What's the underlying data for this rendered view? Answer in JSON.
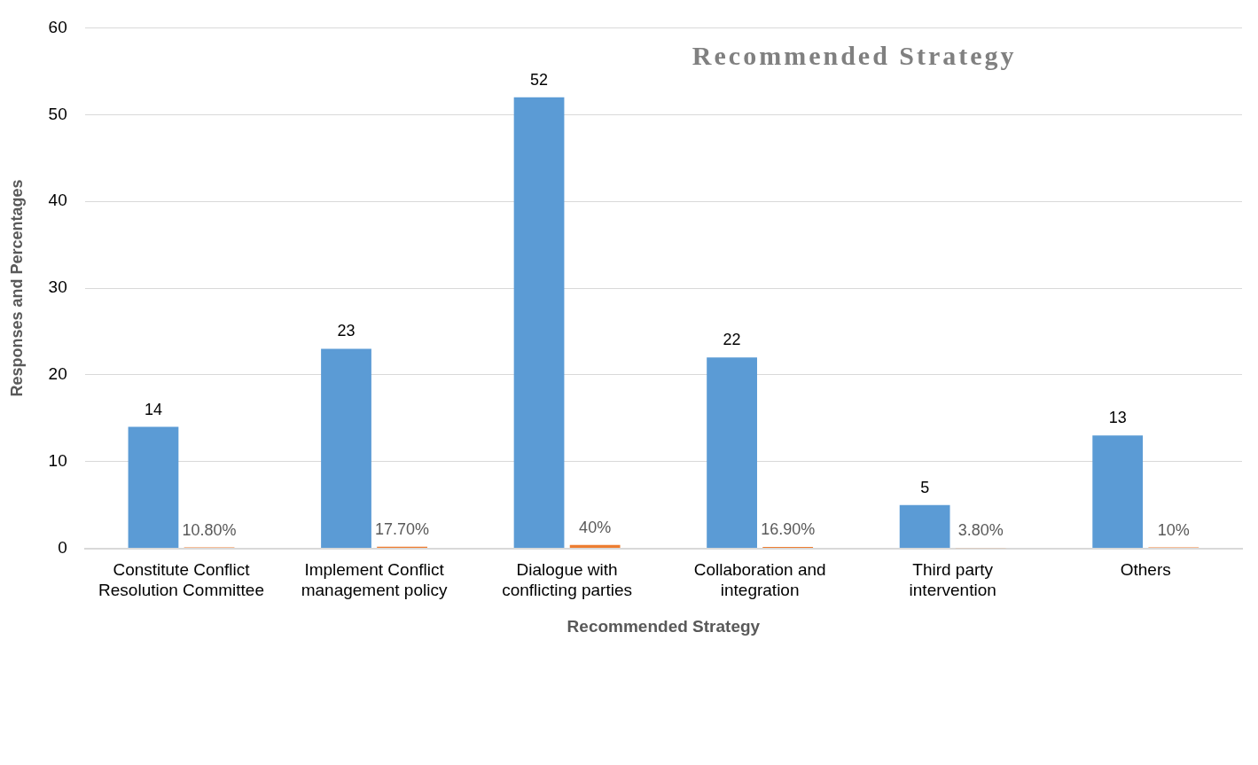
{
  "chart_data": {
    "type": "bar",
    "title": "Recommended Strategy",
    "xlabel": "Recommended Strategy",
    "ylabel": "Responses and Percentages",
    "categories": [
      "Constitute Conflict Resolution Committee",
      "Implement Conflict management policy",
      "Dialogue with conflicting parties",
      "Collaboration and integration",
      "Third party intervention",
      "Others"
    ],
    "series": [
      {
        "color": "#5b9bd5",
        "values": [
          14,
          23,
          52,
          22,
          5,
          13
        ],
        "value_labels": [
          "14",
          "23",
          "52",
          "22",
          "5",
          "13"
        ]
      },
      {
        "color": "#ed7d31",
        "values": [
          0.108,
          0.177,
          0.4,
          0.169,
          0.038,
          0.1
        ],
        "value_labels": [
          "10.80%",
          "17.70%",
          "40%",
          "16.90%",
          "3.80%",
          "10%"
        ]
      }
    ],
    "ylim": [
      0,
      60
    ],
    "yticks": [
      0,
      10,
      20,
      30,
      40,
      50,
      60
    ],
    "grid": "y",
    "legend": false
  }
}
